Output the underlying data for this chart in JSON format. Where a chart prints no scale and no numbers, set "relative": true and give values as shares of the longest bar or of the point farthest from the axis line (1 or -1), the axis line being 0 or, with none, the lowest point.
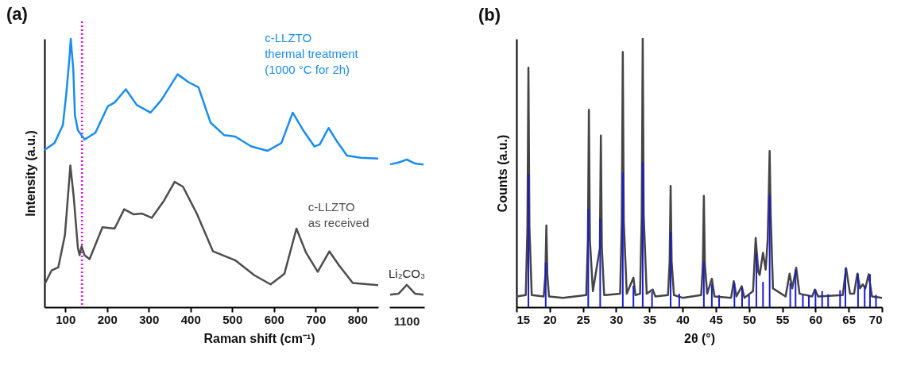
{
  "chart_data": [
    {
      "type": "line",
      "title": "(a)",
      "xlabel": "Raman shift (cm⁻¹)",
      "ylabel": "Intensity (a.u.)",
      "relative": true,
      "tick_labels": "x",
      "xlim": [
        50,
        850
      ],
      "xticks": [
        100,
        200,
        300,
        400,
        500,
        600,
        700,
        800
      ],
      "series": [
        {
          "name": "c-LLZTO\nthermal treatment\n(1000 °C for 2h)",
          "color": "#1a8cf0",
          "x": [
            50,
            74,
            94,
            102,
            110,
            113,
            119,
            123,
            130,
            146,
            172,
            202,
            218,
            245,
            271,
            304,
            330,
            369,
            396,
            419,
            448,
            481,
            507,
            546,
            585,
            618,
            645,
            670,
            697,
            710,
            731,
            749,
            775,
            808,
            850
          ],
          "values": [
            0.586,
            0.612,
            0.678,
            0.792,
            0.932,
            1,
            0.886,
            0.715,
            0.66,
            0.625,
            0.65,
            0.749,
            0.763,
            0.812,
            0.754,
            0.725,
            0.772,
            0.868,
            0.838,
            0.82,
            0.688,
            0.641,
            0.636,
            0.599,
            0.583,
            0.612,
            0.725,
            0.66,
            0.599,
            0.607,
            0.668,
            0.623,
            0.565,
            0.557,
            0.554
          ]
        },
        {
          "name": "c-LLZTO\nas received",
          "color": "#4d4d4d",
          "x": [
            50,
            67,
            83,
            99,
            112,
            120,
            130,
            134,
            139,
            146,
            158,
            189,
            218,
            241,
            264,
            284,
            307,
            336,
            362,
            382,
            415,
            454,
            507,
            553,
            592,
            625,
            654,
            677,
            705,
            733,
            756,
            789,
            850
          ],
          "values": [
            0.085,
            0.137,
            0.148,
            0.269,
            0.528,
            0.412,
            0.222,
            0.194,
            0.227,
            0.194,
            0.179,
            0.298,
            0.293,
            0.365,
            0.346,
            0.349,
            0.333,
            0.396,
            0.467,
            0.449,
            0.349,
            0.208,
            0.175,
            0.119,
            0.085,
            0.124,
            0.293,
            0.203,
            0.132,
            0.208,
            0.156,
            0.09,
            0.082
          ]
        }
      ],
      "ref_lines": [
        {
          "axis": "x",
          "value": 140,
          "color": "#ff00ff",
          "line_style": "dotted"
        }
      ]
    },
    {
      "type": "line",
      "relative": true,
      "tick_labels": false,
      "categories": [
        null,
        null,
        null,
        null,
        null
      ],
      "series": [
        {
          "color": "#1a8cf0",
          "values": [
            0.967,
            0.98,
            1,
            0.973,
            0.967
          ]
        },
        {
          "color": "#4d4d4d",
          "values": [
            0.085,
            0.091,
            0.151,
            0.091,
            0.085
          ]
        }
      ],
      "annotations": [
        "Li₂CO₃",
        "1100"
      ]
    },
    {
      "type": "line",
      "title": "(b)",
      "xlabel": "2θ (°)",
      "ylabel": "Counts (a.u.)",
      "relative": true,
      "tick_labels": "x",
      "xlim": [
        15,
        70
      ],
      "xticks": [
        15,
        20,
        25,
        30,
        35,
        40,
        45,
        50,
        55,
        60,
        65,
        70
      ],
      "series": [
        {
          "color": "#444444",
          "x": [
            15,
            16.4,
            16.65,
            16.8,
            16.95,
            17.3,
            19.1,
            19.35,
            19.5,
            19.65,
            19.9,
            22,
            25.5,
            25.75,
            25.9,
            26.05,
            26.5,
            27.55,
            27.7,
            27.85,
            28.2,
            30.6,
            30.85,
            31,
            31.15,
            31.6,
            32.6,
            32.9,
            33.6,
            33.85,
            34,
            34.15,
            34.6,
            35.5,
            35.9,
            37.8,
            38.05,
            38.2,
            38.35,
            38.7,
            40,
            42.8,
            43.05,
            43.2,
            43.35,
            43.7,
            44.4,
            44.8,
            47.3,
            47.7,
            48.1,
            48.9,
            49.3,
            50.6,
            51,
            51.4,
            51.6,
            52.1,
            52.5,
            52.8,
            52.95,
            53.1,
            53.25,
            53.6,
            55.5,
            56.1,
            56.5,
            57.1,
            57.6,
            59.5,
            59.9,
            60.4,
            64.1,
            64.6,
            65.2,
            65.8,
            66.3,
            66.7,
            67.1,
            67.5,
            68,
            68.5,
            70
          ],
          "values": [
            0.04,
            0.045,
            0.3,
            0.893,
            0.3,
            0.045,
            0.04,
            0.12,
            0.305,
            0.12,
            0.04,
            0.035,
            0.045,
            0.25,
            0.736,
            0.25,
            0.06,
            0.22,
            0.64,
            0.22,
            0.045,
            0.05,
            0.32,
            0.951,
            0.32,
            0.05,
            0.11,
            0.045,
            0.05,
            0.34,
            1,
            0.34,
            0.05,
            0.066,
            0.04,
            0.045,
            0.17,
            0.452,
            0.17,
            0.045,
            0.035,
            0.045,
            0.16,
            0.415,
            0.16,
            0.05,
            0.106,
            0.04,
            0.035,
            0.097,
            0.04,
            0.078,
            0.035,
            0.06,
            0.258,
            0.13,
            0.12,
            0.203,
            0.14,
            0.25,
            0.4,
            0.582,
            0.35,
            0.07,
            0.04,
            0.125,
            0.07,
            0.147,
            0.05,
            0.04,
            0.066,
            0.04,
            0.045,
            0.146,
            0.05,
            0.05,
            0.125,
            0.07,
            0.085,
            0.07,
            0.123,
            0.04,
            0.035
          ]
        },
        {
          "type": "bar",
          "color": "#1a1ad6",
          "x": [
            16.8,
            19.4,
            25.8,
            27.6,
            31,
            32.6,
            34,
            35.4,
            38.2,
            39.5,
            43.2,
            44.4,
            45.5,
            47.8,
            48.95,
            50,
            51.1,
            52.1,
            53.1,
            56.2,
            57,
            58.1,
            59,
            60,
            61,
            61.9,
            63.7,
            64.5,
            66.4,
            67.4,
            68.2,
            69.1
          ],
          "values": [
            0.497,
            0.166,
            0.366,
            0.331,
            0.502,
            0.08,
            0.54,
            0.057,
            0.281,
            0.05,
            0.17,
            0.085,
            0.045,
            0.09,
            0.071,
            0.045,
            0.2,
            0.094,
            0.419,
            0.09,
            0.14,
            0.046,
            0.045,
            0.066,
            0.06,
            0.048,
            0.063,
            0.146,
            0.125,
            0.08,
            0.123,
            0.046
          ]
        }
      ]
    }
  ]
}
